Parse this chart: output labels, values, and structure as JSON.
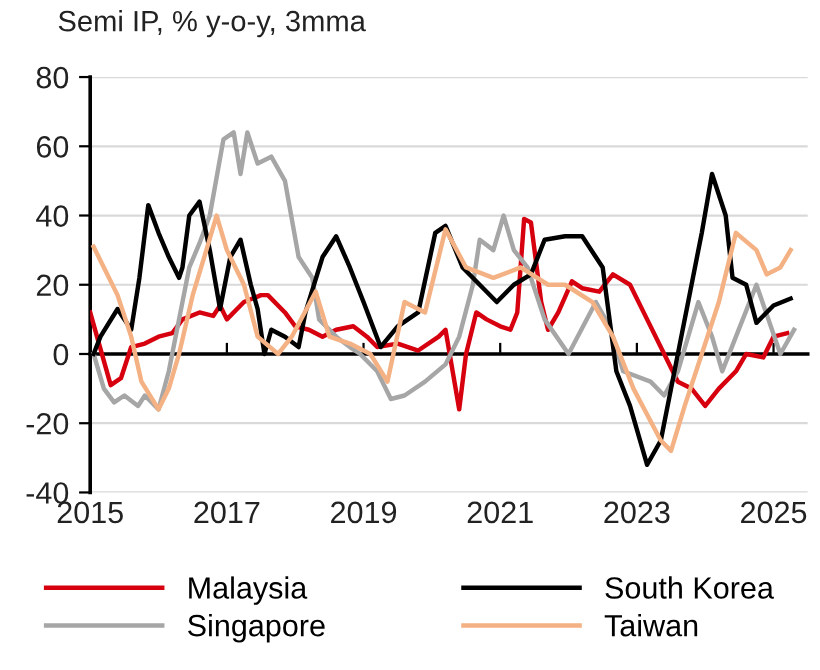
{
  "chart_data": {
    "type": "line",
    "title": "Semi IP, % y-o-y, 3mma",
    "xlim": [
      2015,
      2025.5
    ],
    "xticks": [
      2015,
      2017,
      2019,
      2021,
      2023,
      2025
    ],
    "ylim": [
      -40,
      80
    ],
    "yticks": [
      -40,
      -20,
      0,
      20,
      40,
      60,
      80
    ],
    "grid": "y",
    "legend": "bottom",
    "line_style": "solid",
    "marker": "none",
    "series": [
      {
        "name": "Malaysia",
        "color": "#d7000f",
        "x": [
          2015.0,
          2015.3,
          2015.45,
          2015.6,
          2015.8,
          2016.0,
          2016.2,
          2016.35,
          2016.6,
          2016.8,
          2016.9,
          2017.0,
          2017.25,
          2017.5,
          2017.6,
          2017.85,
          2018.0,
          2018.2,
          2018.4,
          2018.6,
          2018.85,
          2019.05,
          2019.2,
          2019.5,
          2019.8,
          2020.1,
          2020.2,
          2020.4,
          2020.5,
          2020.65,
          2020.8,
          2021.0,
          2021.15,
          2021.25,
          2021.35,
          2021.45,
          2021.6,
          2021.7,
          2021.85,
          2022.05,
          2022.2,
          2022.45,
          2022.65,
          2022.9,
          2023.15,
          2023.4,
          2023.6,
          2023.8,
          2024.0,
          2024.2,
          2024.45,
          2024.6,
          2024.85,
          2025.0,
          2025.2
        ],
        "values": [
          12,
          -9,
          -7,
          2,
          3,
          5,
          6,
          10,
          12,
          11,
          14,
          10,
          15,
          17,
          17,
          12,
          8,
          7,
          5,
          7,
          8,
          5,
          2,
          3,
          1,
          5,
          7,
          -16,
          0,
          12,
          10,
          8,
          7,
          12,
          39,
          38,
          15,
          7,
          12,
          21,
          19,
          18,
          23,
          20,
          10,
          0,
          -8,
          -10,
          -15,
          -10,
          -5,
          0,
          -1,
          5,
          6
        ]
      },
      {
        "name": "Singapore",
        "color": "#a6a6a6",
        "x": [
          2015.05,
          2015.2,
          2015.35,
          2015.5,
          2015.7,
          2015.8,
          2016.0,
          2016.15,
          2016.3,
          2016.45,
          2016.6,
          2016.75,
          2016.95,
          2017.1,
          2017.2,
          2017.3,
          2017.45,
          2017.65,
          2017.85,
          2018.05,
          2018.25,
          2018.35,
          2018.6,
          2018.8,
          2018.95,
          2019.2,
          2019.4,
          2019.6,
          2019.9,
          2020.2,
          2020.4,
          2020.6,
          2020.7,
          2020.9,
          2021.05,
          2021.2,
          2021.4,
          2021.65,
          2022.0,
          2022.4,
          2022.6,
          2022.8,
          2023.2,
          2023.4,
          2023.6,
          2023.9,
          2024.1,
          2024.25,
          2024.45,
          2024.75,
          2025.1,
          2025.3
        ],
        "values": [
          0,
          -10,
          -14,
          -12,
          -15,
          -12,
          -16,
          -5,
          10,
          25,
          32,
          40,
          62,
          64,
          52,
          64,
          55,
          57,
          50,
          28,
          22,
          10,
          5,
          2,
          0,
          -5,
          -13,
          -12,
          -8,
          -3,
          5,
          20,
          33,
          30,
          40,
          30,
          25,
          10,
          0,
          15,
          8,
          -5,
          -8,
          -12,
          -5,
          15,
          5,
          -5,
          5,
          20,
          0,
          7
        ]
      },
      {
        "name": "South Korea",
        "color": "#000000",
        "x": [
          2015.05,
          2015.15,
          2015.4,
          2015.6,
          2015.72,
          2015.85,
          2016.0,
          2016.15,
          2016.3,
          2016.35,
          2016.45,
          2016.6,
          2016.75,
          2016.9,
          2017.05,
          2017.2,
          2017.35,
          2017.45,
          2017.55,
          2017.65,
          2017.85,
          2018.05,
          2018.15,
          2018.4,
          2018.6,
          2018.8,
          2019.0,
          2019.25,
          2019.5,
          2019.8,
          2020.05,
          2020.2,
          2020.45,
          2020.7,
          2020.95,
          2021.2,
          2021.45,
          2021.65,
          2021.95,
          2022.2,
          2022.5,
          2022.7,
          2022.9,
          2023.15,
          2023.35,
          2023.5,
          2023.75,
          2023.95,
          2024.1,
          2024.3,
          2024.4,
          2024.6,
          2024.75,
          2025.0,
          2025.25
        ],
        "values": [
          0,
          5,
          13,
          7,
          22,
          43,
          35,
          28,
          22,
          25,
          40,
          44,
          30,
          13,
          28,
          33,
          20,
          13,
          0,
          7,
          5,
          2,
          12,
          28,
          34,
          25,
          15,
          2,
          8,
          12,
          35,
          37,
          25,
          20,
          15,
          20,
          23,
          33,
          34,
          34,
          25,
          -5,
          -15,
          -32,
          -25,
          -10,
          15,
          35,
          52,
          40,
          22,
          20,
          9,
          14,
          16
        ]
      },
      {
        "name": "Taiwan",
        "color": "#f4b183",
        "x": [
          2015.05,
          2015.2,
          2015.4,
          2015.6,
          2015.75,
          2016.0,
          2016.15,
          2016.3,
          2016.5,
          2016.7,
          2016.85,
          2017.0,
          2017.25,
          2017.45,
          2017.75,
          2017.95,
          2018.3,
          2018.5,
          2018.8,
          2019.1,
          2019.35,
          2019.6,
          2019.9,
          2020.2,
          2020.5,
          2020.9,
          2021.3,
          2021.7,
          2021.95,
          2022.35,
          2022.65,
          2022.95,
          2023.35,
          2023.5,
          2023.7,
          2023.95,
          2024.2,
          2024.45,
          2024.75,
          2024.9,
          2025.1,
          2025.25
        ],
        "values": [
          31,
          25,
          17,
          5,
          -8,
          -16,
          -10,
          0,
          17,
          30,
          40,
          30,
          20,
          5,
          0,
          5,
          18,
          5,
          3,
          0,
          -8,
          15,
          12,
          36,
          25,
          22,
          25,
          20,
          20,
          15,
          5,
          -10,
          -25,
          -28,
          -15,
          0,
          15,
          35,
          30,
          23,
          25,
          30
        ]
      }
    ]
  }
}
